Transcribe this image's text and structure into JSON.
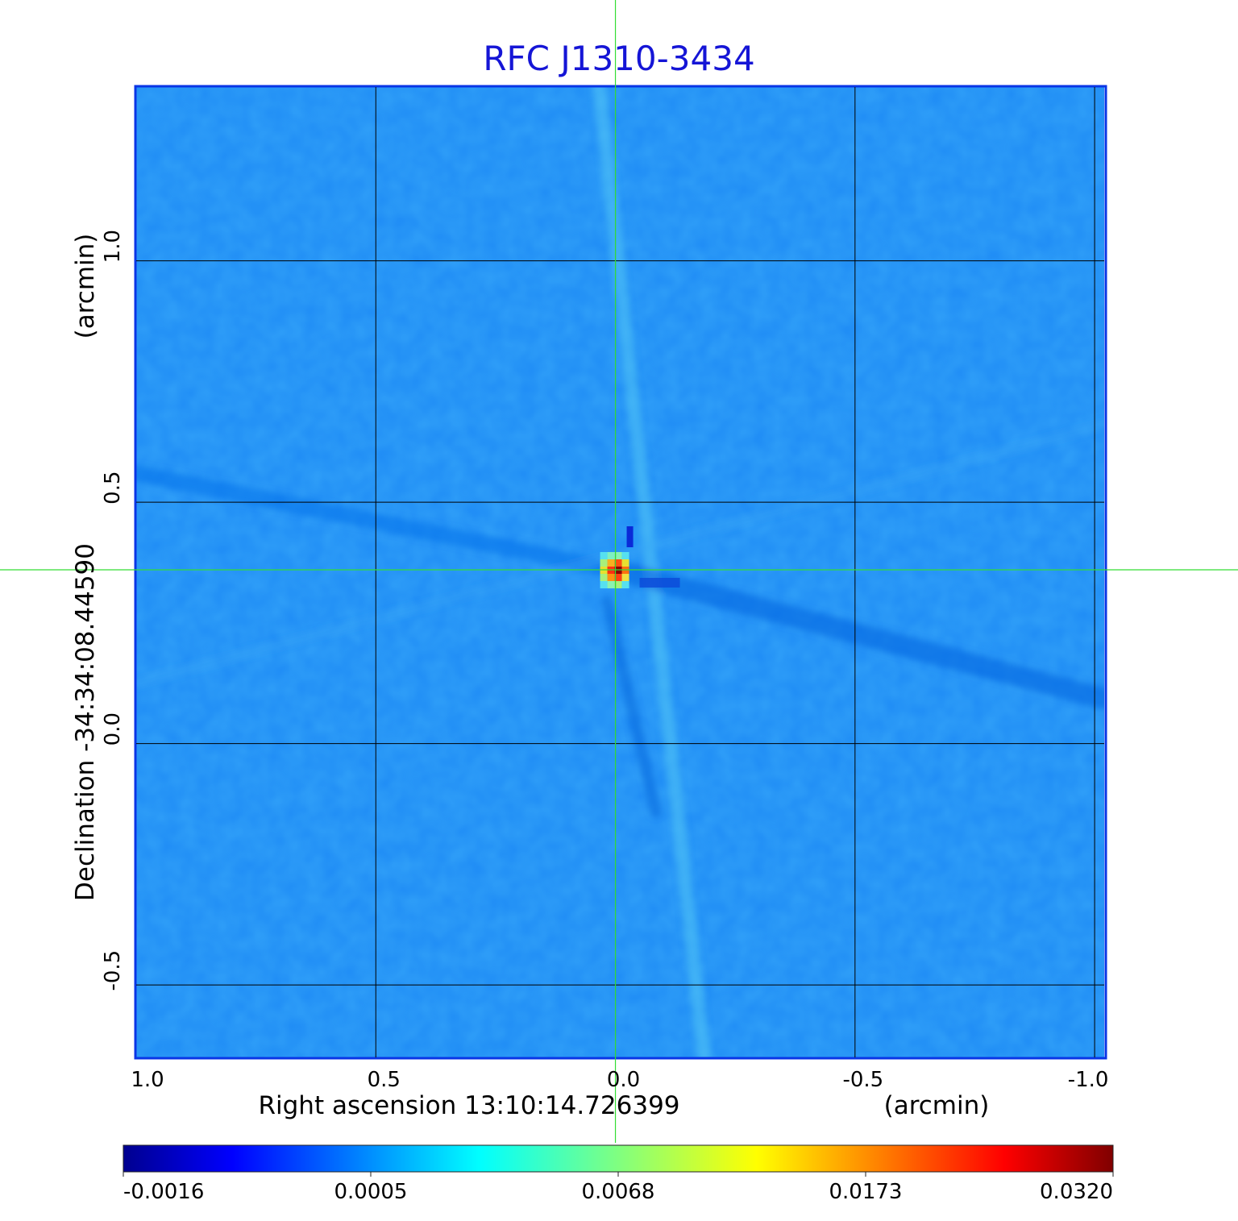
{
  "chart_data": {
    "type": "heatmap",
    "title": "RFC J1310-3434",
    "xlabel": "Right ascension  13:10:14.726399",
    "xunit": "(arcmin)",
    "ylabel": "Declination  -34:34:08.44590",
    "yunit": "(arcmin)",
    "x_ticks": [
      1.0,
      0.5,
      0.0,
      -0.5,
      -1.0
    ],
    "x_tick_labels": [
      "1.0",
      "0.5",
      "0.0",
      "-0.5",
      "-1.0"
    ],
    "y_ticks": [
      1.0,
      0.5,
      0.0,
      -0.5
    ],
    "y_tick_labels": [
      "1.0",
      "0.5",
      "0.0",
      "-0.5"
    ],
    "xlim": [
      1.0,
      -1.02
    ],
    "ylim": [
      -0.65,
      1.36
    ],
    "grid": true,
    "crosshair": {
      "x": 0.0,
      "y": 0.36
    },
    "peak": {
      "x": 0.0,
      "y": 0.36,
      "value": 0.032
    },
    "colorbar": {
      "colormap": "jet",
      "position": "bottom",
      "tick_labels": [
        "-0.0016",
        "0.0005",
        "0.0068",
        "0.0173",
        "0.0320"
      ],
      "tick_values": [
        -0.0016,
        0.0005,
        0.0068,
        0.0173,
        0.032
      ]
    },
    "colors": {
      "title": "#1515d6",
      "frame": "#0a35e6",
      "crosshair": "#33dd33",
      "grid": "#000000",
      "background_noise": "#1f8cf5"
    }
  }
}
